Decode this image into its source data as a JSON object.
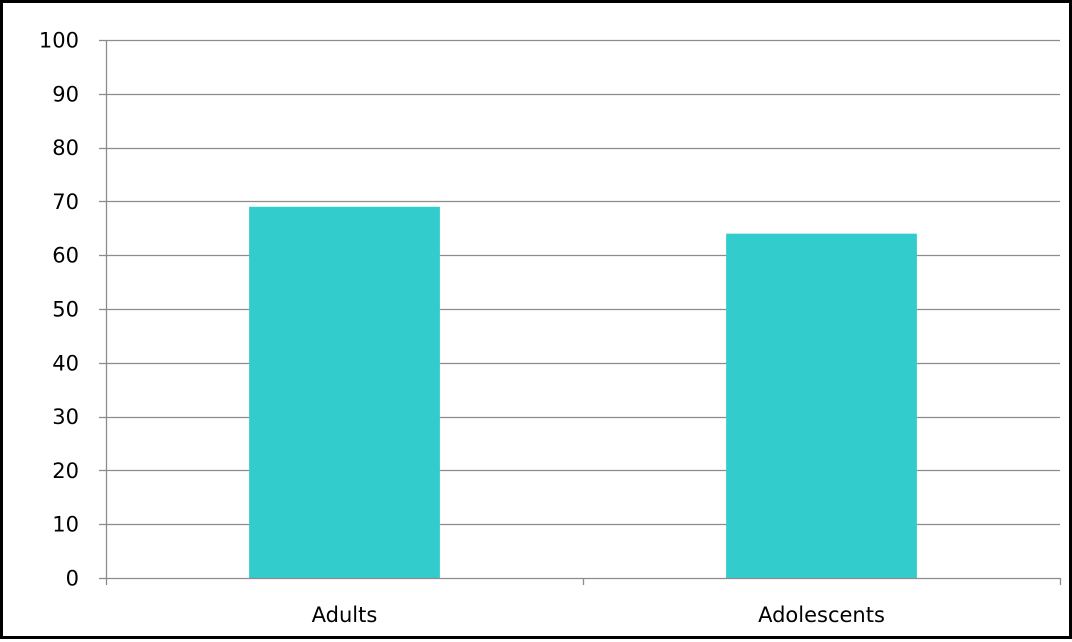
{
  "chart_data": {
    "type": "bar",
    "categories": [
      "Adults",
      "Adolescents"
    ],
    "values": [
      69,
      64
    ],
    "title": "",
    "xlabel": "",
    "ylabel": "",
    "ylim": [
      0,
      100
    ],
    "yticks": [
      0,
      10,
      20,
      30,
      40,
      50,
      60,
      70,
      80,
      90,
      100
    ],
    "grid": true,
    "legend": "none",
    "colors": {
      "bar": "#33CCCC",
      "grid": "#8C8C8C",
      "axis": "#8C8C8C",
      "border": "#000000",
      "text": "#000000"
    }
  }
}
